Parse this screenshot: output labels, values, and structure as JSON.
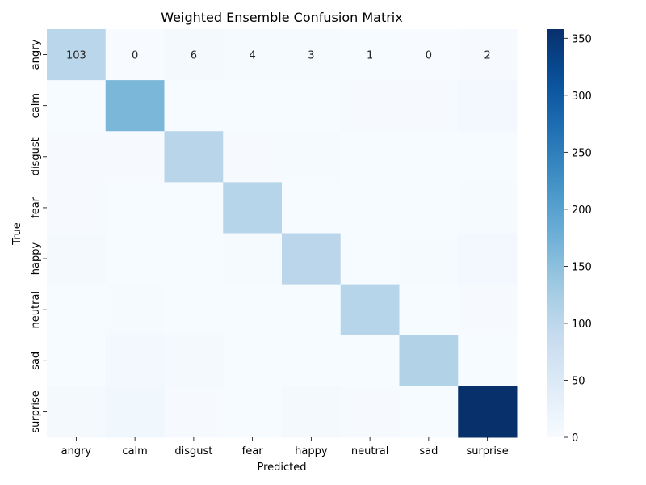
{
  "chart_data": {
    "type": "heatmap",
    "title": "Weighted Ensemble Confusion Matrix",
    "xlabel": "Predicted",
    "ylabel": "True",
    "x_categories": [
      "angry",
      "calm",
      "disgust",
      "fear",
      "happy",
      "neutral",
      "sad",
      "surprise"
    ],
    "y_categories": [
      "angry",
      "calm",
      "disgust",
      "fear",
      "happy",
      "neutral",
      "sad",
      "surprise"
    ],
    "values": [
      [
        103,
        0,
        6,
        4,
        3,
        1,
        0,
        2
      ],
      [
        1,
        165,
        1,
        1,
        1,
        2,
        2,
        7
      ],
      [
        2,
        2,
        105,
        2,
        3,
        1,
        1,
        1
      ],
      [
        2,
        1,
        1,
        107,
        1,
        1,
        1,
        4
      ],
      [
        6,
        1,
        1,
        4,
        102,
        1,
        4,
        9
      ],
      [
        1,
        3,
        1,
        1,
        1,
        106,
        1,
        2
      ],
      [
        1,
        9,
        5,
        1,
        1,
        1,
        112,
        1
      ],
      [
        6,
        12,
        2,
        1,
        6,
        2,
        1,
        358
      ]
    ],
    "annotated_rows": [
      0
    ],
    "colorbar": {
      "min": 0,
      "max": 358,
      "ticks": [
        0,
        50,
        100,
        150,
        200,
        250,
        300,
        350
      ],
      "colormap": "Blues",
      "low_color": "#f7fbff",
      "high_color": "#08306b"
    }
  }
}
